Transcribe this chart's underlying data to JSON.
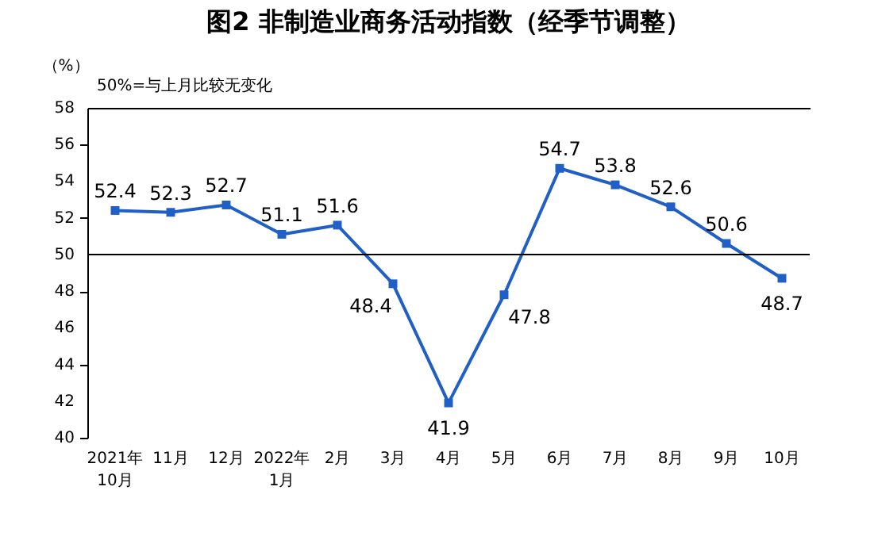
{
  "chart_data": {
    "type": "line",
    "title": "图2  非制造业商务活动指数（经季节调整）",
    "ylabel": "（%）",
    "annotations": [
      "50%=与上月比较无变化"
    ],
    "categories": [
      "2021年\n10月",
      "11月",
      "12月",
      "2022年\n1月",
      "2月",
      "3月",
      "4月",
      "5月",
      "6月",
      "7月",
      "8月",
      "9月",
      "10月"
    ],
    "series": [
      {
        "color": "#1f5fc6",
        "values": [
          52.4,
          52.3,
          52.7,
          51.1,
          51.6,
          48.4,
          41.9,
          47.8,
          54.7,
          53.8,
          52.6,
          50.6,
          48.7
        ]
      }
    ],
    "ylim": [
      40,
      58
    ],
    "yticks": [
      40,
      42,
      44,
      46,
      48,
      50,
      52,
      54,
      56,
      58
    ],
    "ref_lines": [
      {
        "axis": "y",
        "value": 50,
        "color": "#000000"
      }
    ],
    "data_labels": true,
    "marker": "square",
    "line_style": "solid",
    "grid": false
  }
}
